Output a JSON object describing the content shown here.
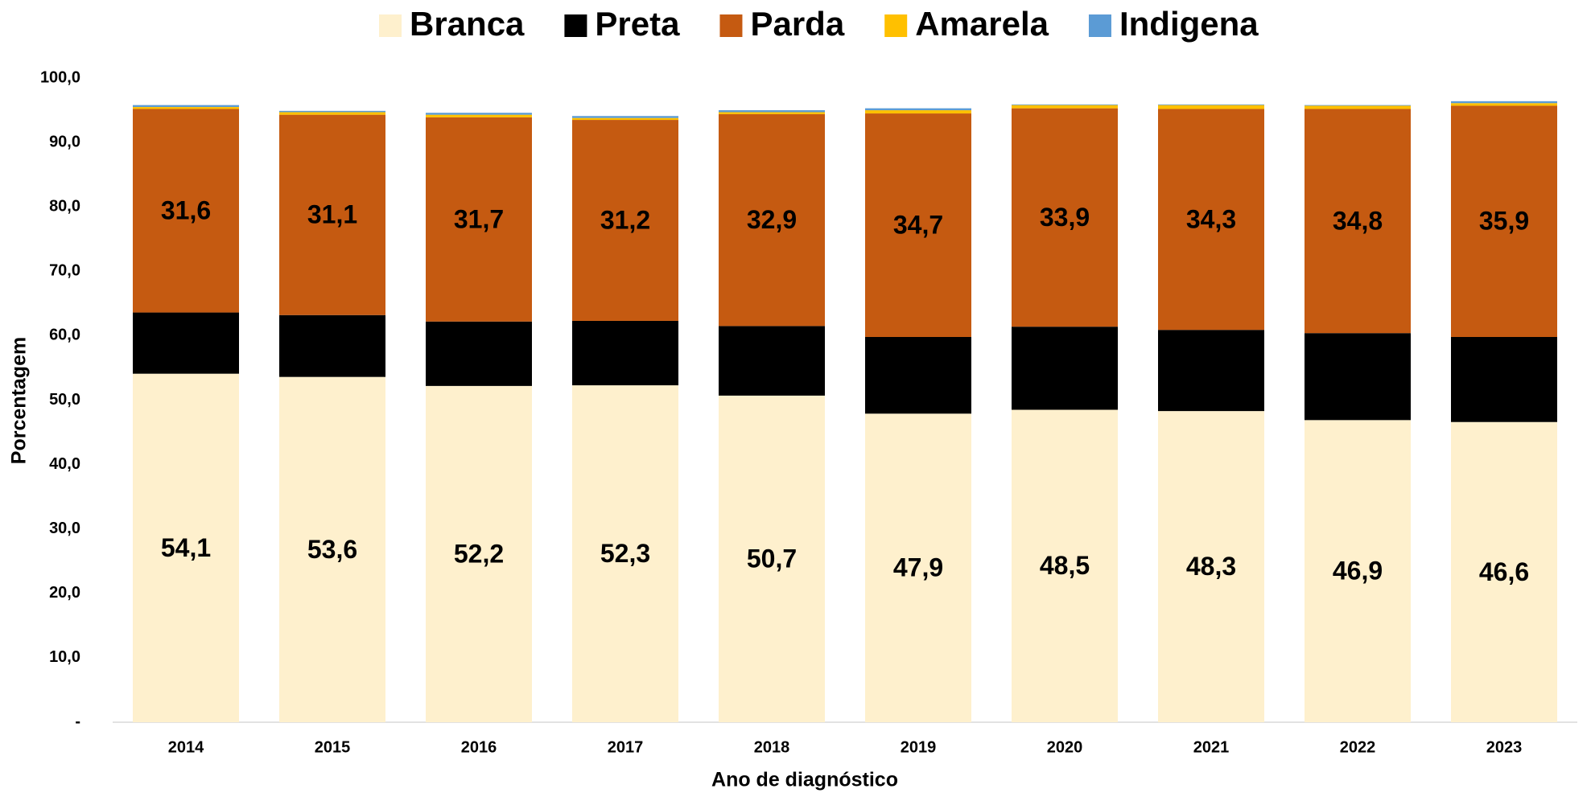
{
  "chart_data": {
    "type": "stacked_bar",
    "x_label": "Ano de diagnóstico",
    "y_label": "Porcentagem",
    "categories": [
      "2014",
      "2015",
      "2016",
      "2017",
      "2018",
      "2019",
      "2020",
      "2021",
      "2022",
      "2023"
    ],
    "series": [
      {
        "name": "Branca",
        "color": "#fef0cd",
        "values": [
          54.1,
          53.6,
          52.2,
          52.3,
          50.7,
          47.9,
          48.5,
          48.3,
          46.9,
          46.6
        ],
        "value_labels": [
          "54,1",
          "53,6",
          "52,2",
          "52,3",
          "50,7",
          "47,9",
          "48,5",
          "48,3",
          "46,9",
          "46,6"
        ]
      },
      {
        "name": "Preta",
        "color": "#000000",
        "values": [
          9.5,
          9.6,
          10.0,
          10.0,
          10.8,
          11.9,
          12.9,
          12.6,
          13.5,
          13.2
        ],
        "value_labels": [
          "9,5",
          "9,6",
          "10,0",
          "10,0",
          "10,8",
          "11,9",
          "12,9",
          "12,6",
          "13,5",
          "13,2"
        ]
      },
      {
        "name": "Parda",
        "color": "#c55a11",
        "values": [
          31.6,
          31.1,
          31.7,
          31.2,
          32.9,
          34.7,
          33.9,
          34.3,
          34.8,
          35.9
        ],
        "value_labels": [
          "31,6",
          "31,1",
          "31,7",
          "31,2",
          "32,9",
          "34,7",
          "33,9",
          "34,3",
          "34,8",
          "35,9"
        ]
      },
      {
        "name": "Amarela",
        "color": "#ffc000",
        "values": [
          0.3,
          0.4,
          0.4,
          0.3,
          0.3,
          0.5,
          0.5,
          0.6,
          0.5,
          0.4
        ]
      },
      {
        "name": "Indigena",
        "color": "#5b9bd5",
        "values": [
          0.3,
          0.2,
          0.3,
          0.3,
          0.3,
          0.3,
          0.1,
          0.1,
          0.1,
          0.3
        ]
      }
    ],
    "ylim": [
      0,
      100
    ],
    "yticks": [
      {
        "value": 0,
        "label": "-"
      },
      {
        "value": 10,
        "label": "10,0"
      },
      {
        "value": 20,
        "label": "20,0"
      },
      {
        "value": 30,
        "label": "30,0"
      },
      {
        "value": 40,
        "label": "40,0"
      },
      {
        "value": 50,
        "label": "50,0"
      },
      {
        "value": 60,
        "label": "60,0"
      },
      {
        "value": 70,
        "label": "70,0"
      },
      {
        "value": 80,
        "label": "80,0"
      },
      {
        "value": 90,
        "label": "90,0"
      },
      {
        "value": 100,
        "label": "100,0"
      }
    ],
    "grid": false,
    "legend": "top"
  }
}
